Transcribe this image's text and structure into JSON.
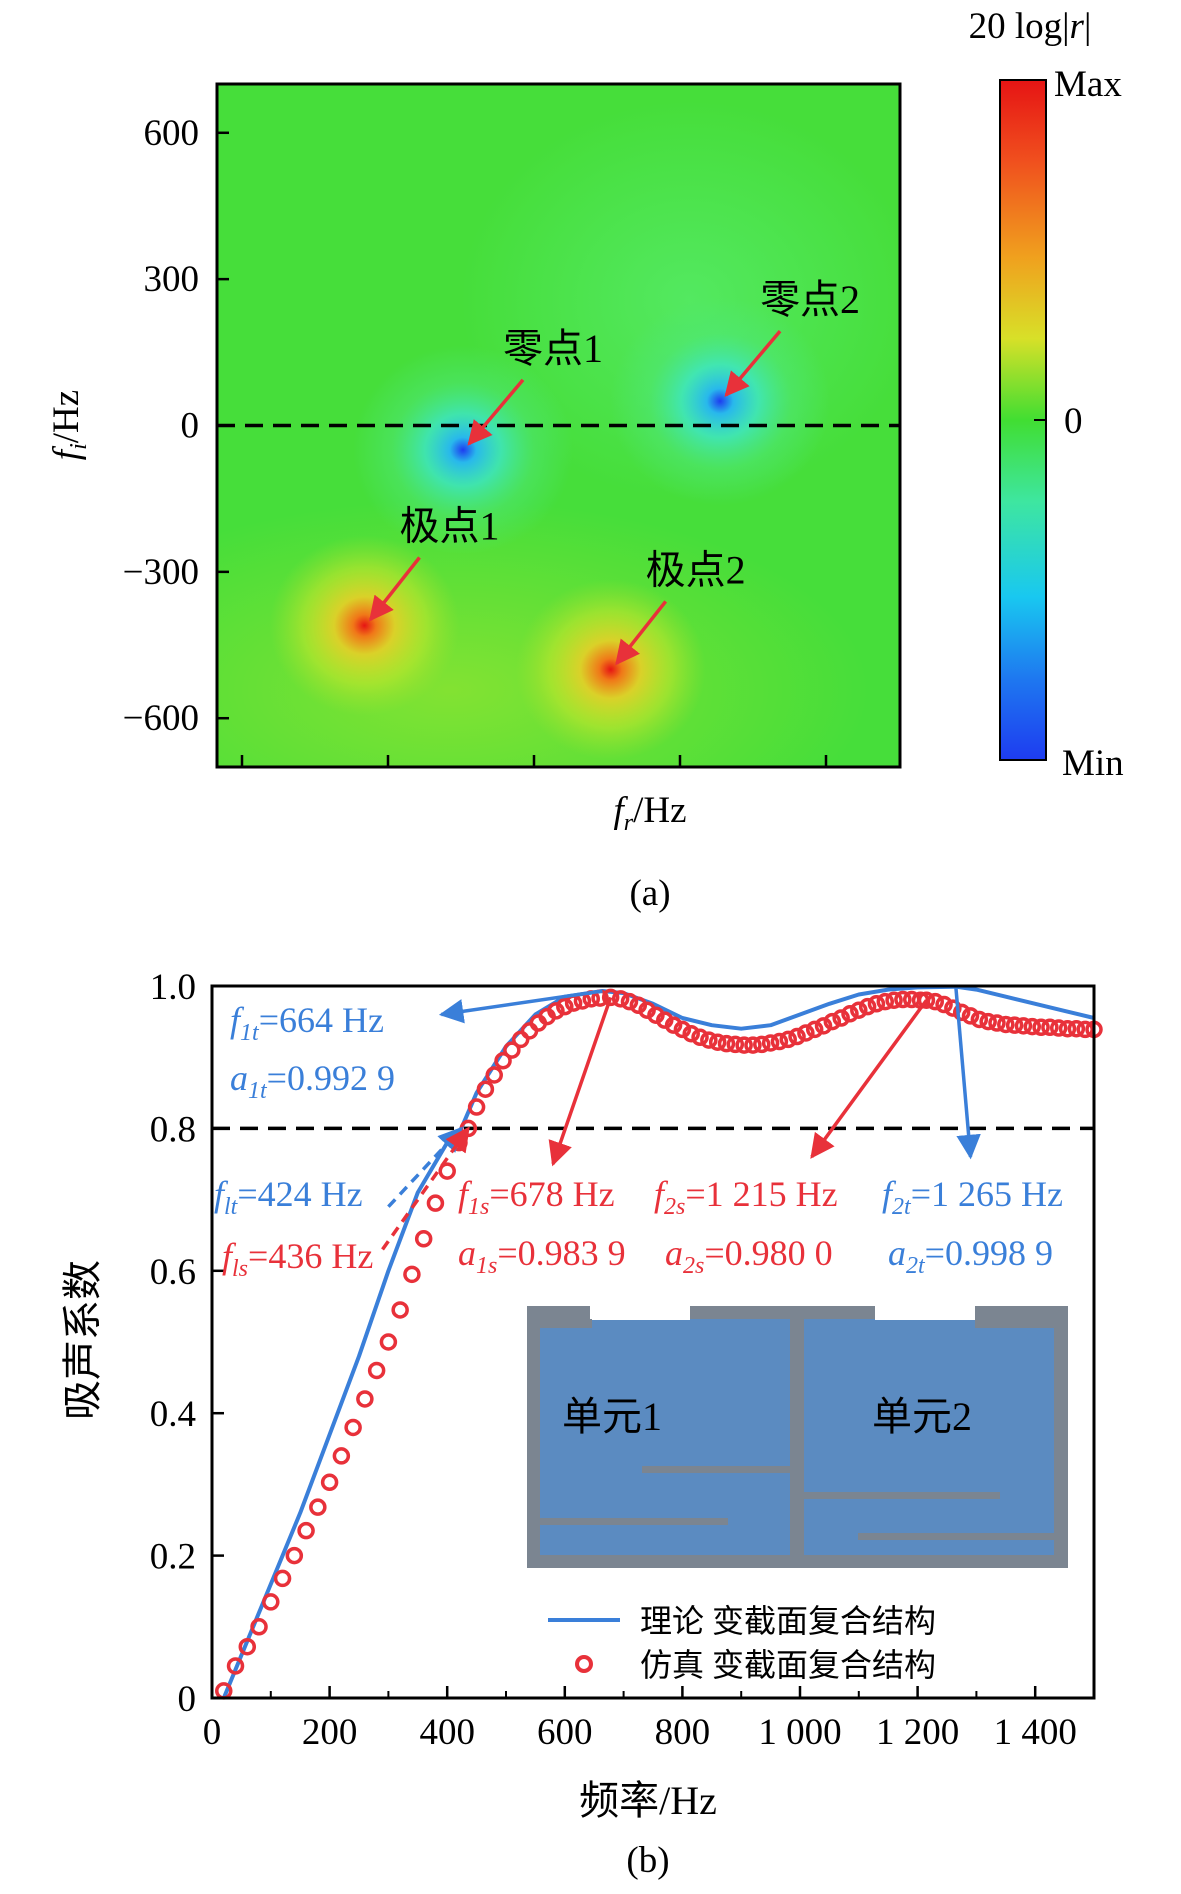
{
  "colors": {
    "theory": "#3a7fd9",
    "simulation": "#e8313a",
    "cbar": [
      "#1e3cf0",
      "#19c8f0",
      "#3ee6a0",
      "#41de32",
      "#c6e628",
      "#f0a01e",
      "#f03c1e",
      "#e61414"
    ]
  },
  "chart_data": [
    {
      "type": "heatmap",
      "title": "20 log|r|",
      "xlabel_main": "f",
      "xlabel_sub": "r",
      "xlabel_rest": "/Hz",
      "ylabel_main": "f",
      "ylabel_sub": "i",
      "ylabel_rest": "/Hz",
      "ylim": [
        -700,
        700
      ],
      "yticks": [
        {
          "v": 600,
          "label": "600"
        },
        {
          "v": 300,
          "label": "300"
        },
        {
          "v": 0,
          "label": "0"
        },
        {
          "v": -300,
          "label": "−300"
        },
        {
          "v": -600,
          "label": "−600"
        }
      ],
      "dashed_line_y": 0,
      "colorbar": {
        "max": "Max",
        "mid": "0",
        "min": "Min"
      },
      "points": [
        {
          "label": "零点1",
          "kind": "zero",
          "fr": 340,
          "fi": -50
        },
        {
          "label": "零点2",
          "kind": "zero",
          "fr": 810,
          "fi": 50
        },
        {
          "label": "极点1",
          "kind": "pole",
          "fr": 160,
          "fi": -410
        },
        {
          "label": "极点2",
          "kind": "pole",
          "fr": 610,
          "fi": -500
        }
      ],
      "panel_label": "(a)"
    },
    {
      "type": "line",
      "xlabel": "频率/Hz",
      "ylabel": "吸声系数",
      "xlim": [
        0,
        1500
      ],
      "ylim": [
        0,
        1.0
      ],
      "xticks": [
        {
          "v": 0,
          "label": "0"
        },
        {
          "v": 200,
          "label": "200"
        },
        {
          "v": 400,
          "label": "400"
        },
        {
          "v": 600,
          "label": "600"
        },
        {
          "v": 800,
          "label": "800"
        },
        {
          "v": 1000,
          "label": "1 000"
        },
        {
          "v": 1200,
          "label": "1 200"
        },
        {
          "v": 1400,
          "label": "1 400"
        }
      ],
      "yticks": [
        {
          "v": 0,
          "label": "0"
        },
        {
          "v": 0.2,
          "label": "0.2"
        },
        {
          "v": 0.4,
          "label": "0.4"
        },
        {
          "v": 0.6,
          "label": "0.6"
        },
        {
          "v": 0.8,
          "label": "0.8"
        },
        {
          "v": 1.0,
          "label": "1.0"
        }
      ],
      "dashed_line_y": 0.8,
      "series": [
        {
          "name": "理论 变截面复合结构",
          "style": "line",
          "x": [
            20,
            50,
            100,
            150,
            200,
            250,
            300,
            350,
            400,
            424,
            450,
            500,
            550,
            600,
            664,
            700,
            750,
            800,
            850,
            900,
            950,
            1000,
            1050,
            1100,
            1150,
            1200,
            1265,
            1300,
            1350,
            1400,
            1450,
            1500
          ],
          "y": [
            0.0,
            0.06,
            0.16,
            0.26,
            0.37,
            0.48,
            0.6,
            0.71,
            0.78,
            0.8,
            0.85,
            0.915,
            0.96,
            0.985,
            0.993,
            0.99,
            0.975,
            0.955,
            0.945,
            0.94,
            0.945,
            0.96,
            0.975,
            0.988,
            0.995,
            0.998,
            0.999,
            0.995,
            0.985,
            0.975,
            0.965,
            0.955
          ]
        },
        {
          "name": "仿真 变截面复合结构",
          "style": "circles",
          "x": [
            20,
            40,
            60,
            80,
            100,
            120,
            140,
            160,
            180,
            200,
            220,
            240,
            260,
            280,
            300,
            320,
            340,
            360,
            380,
            400,
            420,
            436,
            450,
            465,
            480,
            495,
            510,
            525,
            540,
            555,
            570,
            585,
            600,
            615,
            630,
            645,
            660,
            678,
            695,
            710,
            725,
            740,
            755,
            770,
            785,
            800,
            815,
            830,
            845,
            860,
            875,
            890,
            905,
            920,
            935,
            950,
            965,
            980,
            995,
            1010,
            1025,
            1040,
            1055,
            1070,
            1085,
            1100,
            1115,
            1130,
            1145,
            1160,
            1175,
            1190,
            1205,
            1215,
            1230,
            1245,
            1260,
            1275,
            1290,
            1305,
            1320,
            1335,
            1350,
            1365,
            1380,
            1395,
            1410,
            1425,
            1440,
            1455,
            1470,
            1485,
            1500
          ],
          "y": [
            0.01,
            0.045,
            0.072,
            0.1,
            0.135,
            0.168,
            0.2,
            0.235,
            0.268,
            0.303,
            0.34,
            0.38,
            0.42,
            0.46,
            0.5,
            0.545,
            0.595,
            0.645,
            0.695,
            0.74,
            0.78,
            0.8,
            0.83,
            0.855,
            0.875,
            0.895,
            0.91,
            0.925,
            0.937,
            0.948,
            0.957,
            0.965,
            0.971,
            0.976,
            0.979,
            0.982,
            0.983,
            0.984,
            0.982,
            0.978,
            0.973,
            0.966,
            0.959,
            0.952,
            0.945,
            0.939,
            0.933,
            0.928,
            0.924,
            0.921,
            0.919,
            0.918,
            0.917,
            0.917,
            0.918,
            0.92,
            0.922,
            0.925,
            0.929,
            0.934,
            0.939,
            0.944,
            0.95,
            0.955,
            0.961,
            0.966,
            0.971,
            0.975,
            0.978,
            0.98,
            0.981,
            0.981,
            0.98,
            0.98,
            0.978,
            0.974,
            0.969,
            0.963,
            0.958,
            0.953,
            0.95,
            0.948,
            0.946,
            0.945,
            0.944,
            0.943,
            0.942,
            0.942,
            0.941,
            0.94,
            0.94,
            0.939,
            0.939
          ]
        }
      ],
      "annotations": [
        {
          "id": "f1t",
          "color": "theory",
          "main": "f",
          "sub": "1t",
          "rest": "=664 Hz",
          "ax": 390,
          "ay": 0.96,
          "tx": 664,
          "ty": 0.993
        },
        {
          "id": "a1t",
          "color": "theory",
          "main": "a",
          "sub": "1t",
          "rest": "=0.992 9"
        },
        {
          "id": "flt",
          "color": "theory",
          "main": "f",
          "sub": "lt",
          "rest": "=424 Hz",
          "ax": 300,
          "ay": 0.69,
          "tx": 424,
          "ty": 0.8
        },
        {
          "id": "fls",
          "color": "simulation",
          "main": "f",
          "sub": "ls",
          "rest": "=436 Hz",
          "ax": 290,
          "ay": 0.63,
          "tx": 436,
          "ty": 0.8
        },
        {
          "id": "f1s",
          "color": "simulation",
          "main": "f",
          "sub": "1s",
          "rest": "=678 Hz",
          "ax": 678,
          "ay": 0.984,
          "tx": 580,
          "ty": 0.75
        },
        {
          "id": "a1s",
          "color": "simulation",
          "main": "a",
          "sub": "1s",
          "rest": "=0.983 9"
        },
        {
          "id": "f2s",
          "color": "simulation",
          "main": "f",
          "sub": "2s",
          "rest": "=1 215 Hz",
          "ax": 1215,
          "ay": 0.98,
          "tx": 1020,
          "ty": 0.76
        },
        {
          "id": "a2s",
          "color": "simulation",
          "main": "a",
          "sub": "2s",
          "rest": "=0.980 0"
        },
        {
          "id": "f2t",
          "color": "theory",
          "main": "f",
          "sub": "2t",
          "rest": "=1 265 Hz",
          "ax": 1265,
          "ay": 0.999,
          "tx": 1290,
          "ty": 0.76
        },
        {
          "id": "a2t",
          "color": "theory",
          "main": "a",
          "sub": "2t",
          "rest": "=0.998 9"
        }
      ],
      "inset": {
        "unit1": "单元1",
        "unit2": "单元2"
      },
      "panel_label": "(b)"
    }
  ]
}
